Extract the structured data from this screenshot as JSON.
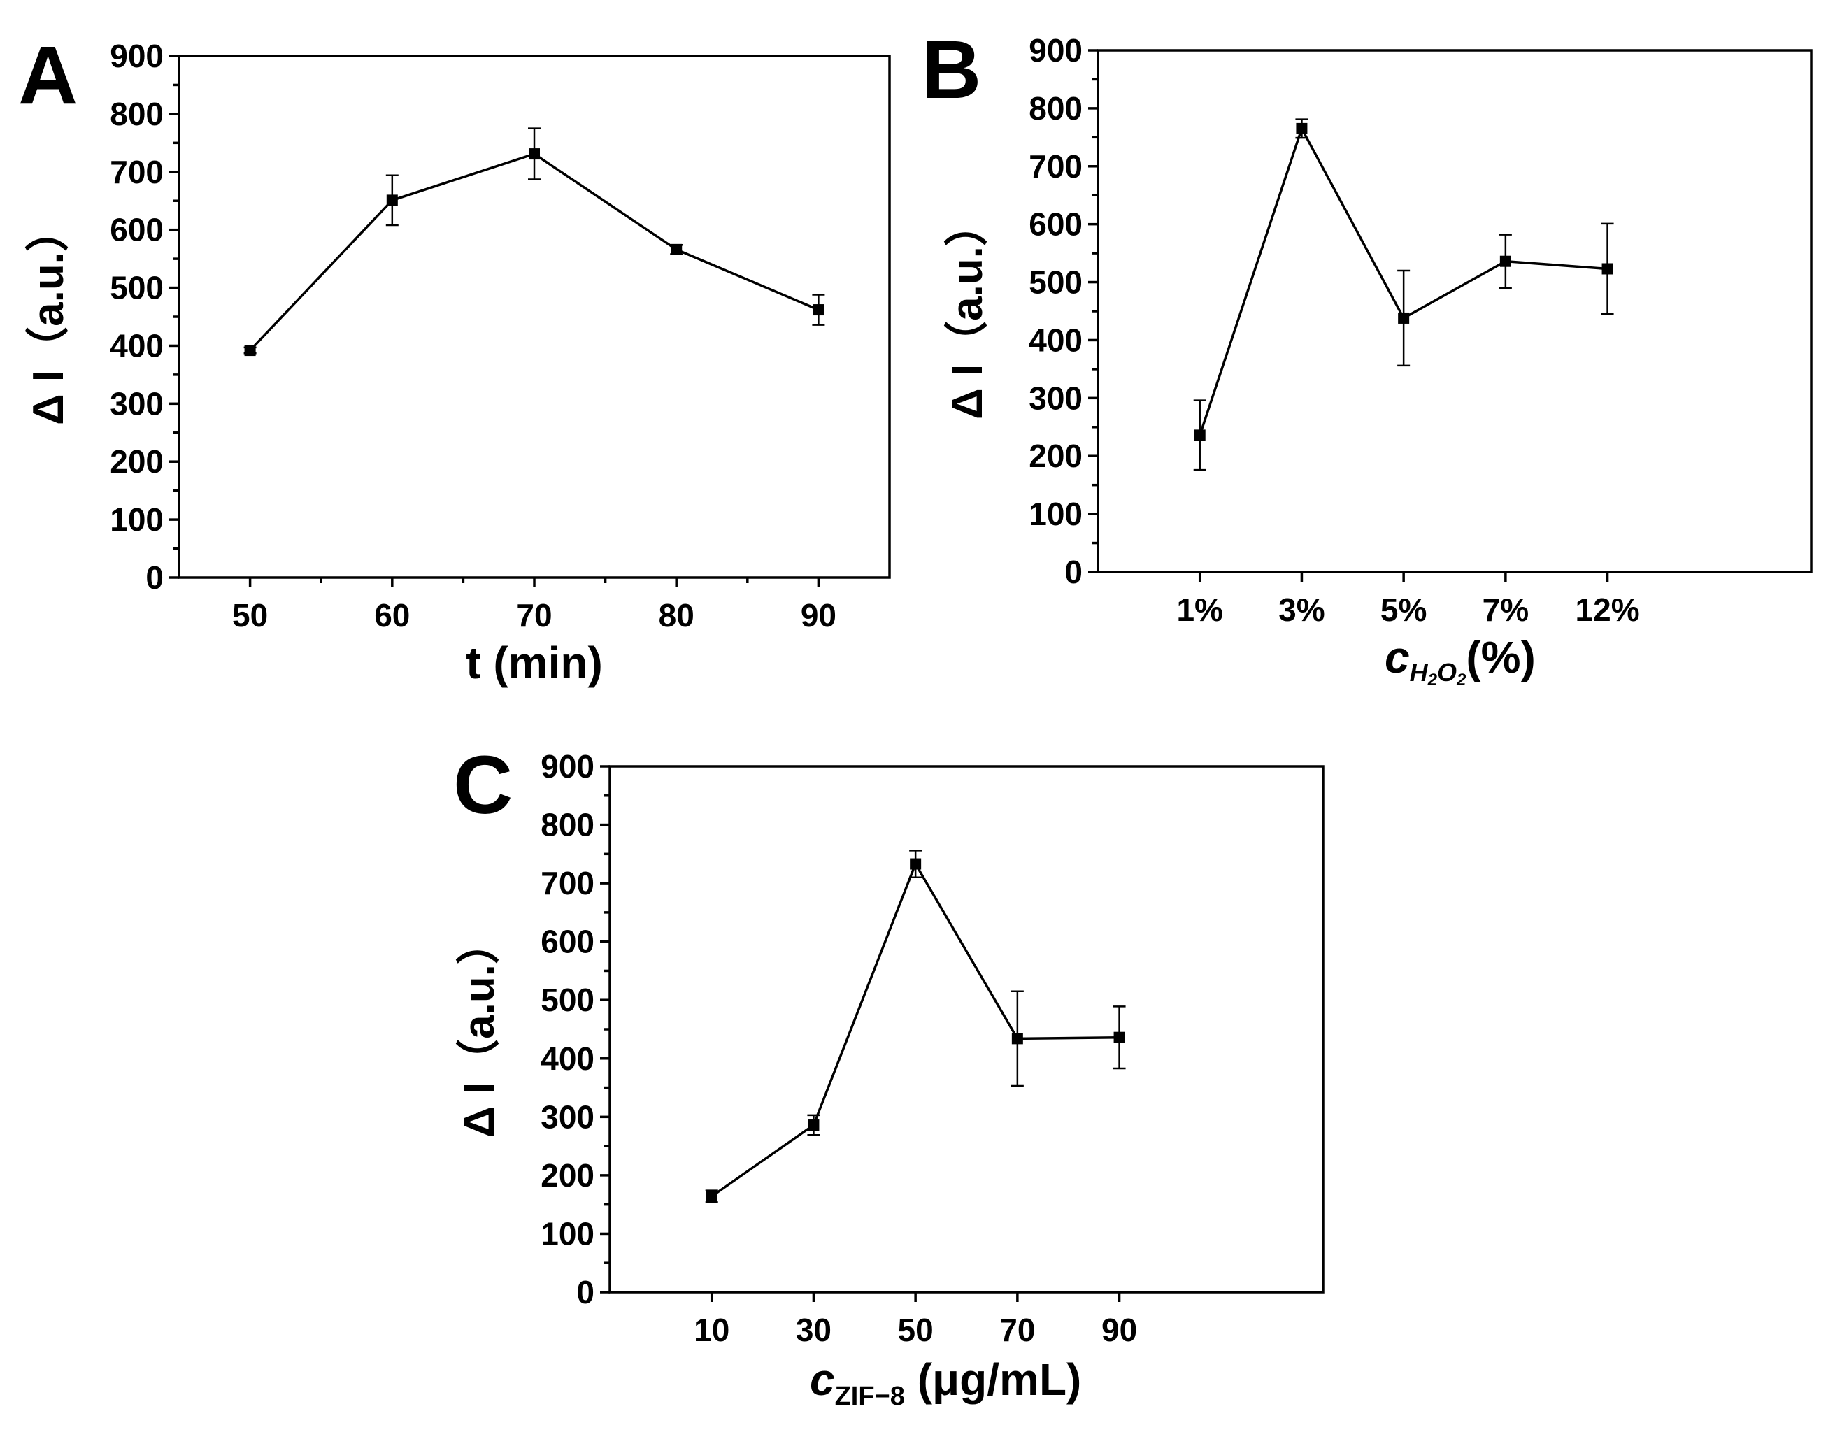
{
  "chart_data": [
    {
      "panel": "A",
      "type": "line",
      "x": [
        50,
        60,
        70,
        80,
        90
      ],
      "categories": [
        "50",
        "60",
        "70",
        "80",
        "90"
      ],
      "values": [
        392,
        651,
        731,
        566,
        462
      ],
      "errors": [
        5,
        43,
        44,
        8,
        26
      ],
      "ylabel": "Δ I（a.u.）",
      "xlabel": "t (min)",
      "ylim": [
        0,
        900
      ],
      "yticks": [
        "0",
        "100",
        "200",
        "300",
        "400",
        "500",
        "600",
        "700",
        "800",
        "900"
      ]
    },
    {
      "panel": "B",
      "type": "line",
      "categories": [
        "1%",
        "3%",
        "5%",
        "7%",
        "12%"
      ],
      "values": [
        236,
        765,
        438,
        536,
        523
      ],
      "errors": [
        60,
        16,
        82,
        46,
        78
      ],
      "ylabel": "Δ I（a.u.）",
      "xlabel_var": "c",
      "xlabel_sub_1": "H",
      "xlabel_sub_2": "2",
      "xlabel_sub_3": "O",
      "xlabel_sub_4": "2",
      "xlabel_unit": "(%)",
      "ylim": [
        0,
        900
      ],
      "yticks": [
        "0",
        "100",
        "200",
        "300",
        "400",
        "500",
        "600",
        "700",
        "800",
        "900"
      ]
    },
    {
      "panel": "C",
      "type": "line",
      "x": [
        10,
        30,
        50,
        70,
        90
      ],
      "categories": [
        "10",
        "30",
        "50",
        "70",
        "90"
      ],
      "values": [
        164,
        286,
        733,
        434,
        436
      ],
      "errors": [
        10,
        17,
        23,
        81,
        53
      ],
      "ylabel": "Δ I（a.u.）",
      "xlabel_var": "c",
      "xlabel_sub": "ZIF−8",
      "xlabel_unit": " (μg/mL)",
      "ylim": [
        0,
        900
      ],
      "yticks": [
        "0",
        "100",
        "200",
        "300",
        "400",
        "500",
        "600",
        "700",
        "800",
        "900"
      ]
    }
  ]
}
